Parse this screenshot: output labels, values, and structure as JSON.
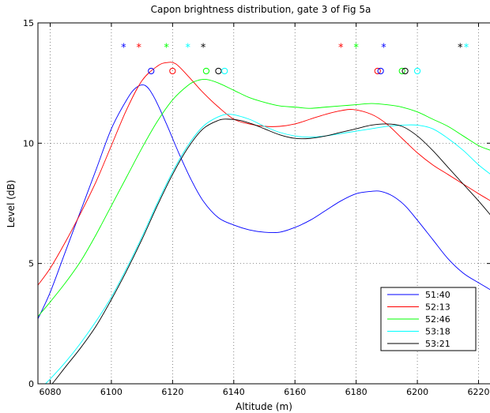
{
  "chart_data": {
    "type": "line",
    "title": "Capon brightness distribution, gate 3 of Fig 5a",
    "xlabel": "Altitude (m)",
    "ylabel": "Level (dB)",
    "xlim": [
      6076,
      6224
    ],
    "ylim": [
      0,
      15
    ],
    "x_ticks": [
      6080,
      6100,
      6120,
      6140,
      6160,
      6180,
      6200,
      6220
    ],
    "y_ticks": [
      0,
      5,
      10,
      15
    ],
    "grid": true,
    "legend_position": "lower-right",
    "series": [
      {
        "name": "51:40",
        "color": "#0000ff",
        "x": [
          6076,
          6080,
          6085,
          6090,
          6095,
          6100,
          6105,
          6108,
          6111,
          6114,
          6118,
          6122,
          6126,
          6130,
          6135,
          6140,
          6145,
          6150,
          6155,
          6160,
          6165,
          6170,
          6175,
          6180,
          6185,
          6188,
          6192,
          6196,
          6200,
          6205,
          6210,
          6215,
          6220,
          6224
        ],
        "y": [
          2.7,
          3.8,
          5.5,
          7.2,
          8.9,
          10.6,
          11.8,
          12.3,
          12.4,
          11.9,
          10.8,
          9.6,
          8.5,
          7.6,
          6.9,
          6.6,
          6.4,
          6.3,
          6.3,
          6.5,
          6.8,
          7.2,
          7.6,
          7.9,
          8.0,
          8.0,
          7.8,
          7.4,
          6.8,
          6.0,
          5.2,
          4.6,
          4.2,
          3.9
        ]
      },
      {
        "name": "52:13",
        "color": "#ff0000",
        "x": [
          6076,
          6080,
          6085,
          6090,
          6095,
          6100,
          6105,
          6110,
          6115,
          6118,
          6121,
          6125,
          6130,
          6135,
          6140,
          6145,
          6150,
          6155,
          6160,
          6165,
          6170,
          6175,
          6179,
          6185,
          6190,
          6195,
          6200,
          6205,
          6210,
          6215,
          6220,
          6224
        ],
        "y": [
          4.1,
          4.8,
          5.9,
          7.1,
          8.4,
          9.9,
          11.4,
          12.6,
          13.2,
          13.35,
          13.3,
          12.8,
          12.1,
          11.5,
          11.0,
          10.8,
          10.7,
          10.7,
          10.8,
          11.0,
          11.2,
          11.35,
          11.4,
          11.2,
          10.8,
          10.2,
          9.6,
          9.1,
          8.7,
          8.3,
          7.9,
          7.6
        ]
      },
      {
        "name": "52:46",
        "color": "#00ff00",
        "x": [
          6076,
          6080,
          6085,
          6090,
          6095,
          6100,
          6105,
          6110,
          6115,
          6120,
          6125,
          6128,
          6131,
          6135,
          6140,
          6145,
          6150,
          6155,
          6160,
          6165,
          6170,
          6175,
          6180,
          6185,
          6190,
          6195,
          6200,
          6205,
          6210,
          6215,
          6220,
          6224
        ],
        "y": [
          2.8,
          3.4,
          4.2,
          5.1,
          6.2,
          7.4,
          8.6,
          9.8,
          10.9,
          11.8,
          12.4,
          12.6,
          12.65,
          12.5,
          12.2,
          11.9,
          11.7,
          11.55,
          11.5,
          11.45,
          11.5,
          11.55,
          11.6,
          11.65,
          11.6,
          11.5,
          11.3,
          11.0,
          10.7,
          10.3,
          9.9,
          9.7
        ]
      },
      {
        "name": "53:18",
        "color": "#00ffff",
        "x": [
          6076,
          6080,
          6085,
          6090,
          6095,
          6100,
          6105,
          6110,
          6115,
          6120,
          6125,
          6130,
          6135,
          6139,
          6145,
          6150,
          6155,
          6160,
          6165,
          6170,
          6175,
          6180,
          6185,
          6190,
          6195,
          6200,
          6205,
          6210,
          6215,
          6220,
          6224
        ],
        "y": [
          -0.3,
          0.2,
          0.9,
          1.7,
          2.6,
          3.6,
          4.8,
          6.1,
          7.5,
          8.8,
          9.9,
          10.7,
          11.1,
          11.2,
          11.0,
          10.7,
          10.45,
          10.3,
          10.25,
          10.3,
          10.4,
          10.5,
          10.6,
          10.7,
          10.75,
          10.75,
          10.6,
          10.2,
          9.7,
          9.1,
          8.7
        ]
      },
      {
        "name": "53:21",
        "color": "#000000",
        "x": [
          6076,
          6080,
          6085,
          6090,
          6095,
          6100,
          6105,
          6110,
          6115,
          6120,
          6125,
          6130,
          6135,
          6138,
          6142,
          6146,
          6150,
          6155,
          6160,
          6165,
          6170,
          6175,
          6180,
          6185,
          6190,
          6195,
          6200,
          6205,
          6210,
          6215,
          6220,
          6224
        ],
        "y": [
          -0.6,
          -0.1,
          0.7,
          1.5,
          2.4,
          3.5,
          4.7,
          6.0,
          7.4,
          8.7,
          9.8,
          10.6,
          10.95,
          11.0,
          10.95,
          10.8,
          10.6,
          10.35,
          10.2,
          10.2,
          10.3,
          10.45,
          10.6,
          10.75,
          10.8,
          10.7,
          10.3,
          9.7,
          9.0,
          8.3,
          7.6,
          7.0
        ]
      }
    ],
    "star_markers": [
      {
        "x": 6104,
        "y": 14,
        "color": "#0000ff"
      },
      {
        "x": 6109,
        "y": 14,
        "color": "#ff0000"
      },
      {
        "x": 6118,
        "y": 14,
        "color": "#00ff00"
      },
      {
        "x": 6125,
        "y": 14,
        "color": "#00ffff"
      },
      {
        "x": 6130,
        "y": 14,
        "color": "#000000"
      },
      {
        "x": 6175,
        "y": 14,
        "color": "#ff0000"
      },
      {
        "x": 6180,
        "y": 14,
        "color": "#00ff00"
      },
      {
        "x": 6189,
        "y": 14,
        "color": "#0000ff"
      },
      {
        "x": 6214,
        "y": 14,
        "color": "#000000"
      },
      {
        "x": 6216,
        "y": 14,
        "color": "#00ffff"
      }
    ],
    "circle_markers": [
      {
        "x": 6113,
        "y": 13,
        "color": "#0000ff"
      },
      {
        "x": 6120,
        "y": 13,
        "color": "#ff0000"
      },
      {
        "x": 6131,
        "y": 13,
        "color": "#00ff00"
      },
      {
        "x": 6135,
        "y": 13,
        "color": "#000000"
      },
      {
        "x": 6137,
        "y": 13,
        "color": "#00ffff"
      },
      {
        "x": 6187,
        "y": 13,
        "color": "#ff0000"
      },
      {
        "x": 6188,
        "y": 13,
        "color": "#0000ff"
      },
      {
        "x": 6195,
        "y": 13,
        "color": "#00ff00"
      },
      {
        "x": 6196,
        "y": 13,
        "color": "#000000"
      },
      {
        "x": 6200,
        "y": 13,
        "color": "#00ffff"
      }
    ]
  }
}
